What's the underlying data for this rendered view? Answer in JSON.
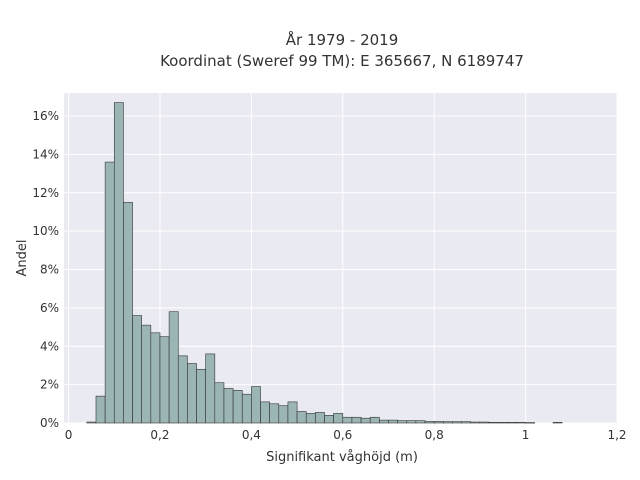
{
  "chart_data": {
    "type": "bar",
    "title_line1": "År 1979 - 2019",
    "title_line2": "Koordinat (Sweref 99 TM): E 365667, N 6189747",
    "xlabel": "Signifikant våghöjd (m)",
    "ylabel": "Andel",
    "xlim": [
      -0.01,
      1.2
    ],
    "ylim": [
      0,
      17.2
    ],
    "xticks": [
      0,
      0.2,
      0.4,
      0.6,
      0.8,
      1,
      1.2
    ],
    "xtick_labels": [
      "0",
      "0,2",
      "0,4",
      "0,6",
      "0,8",
      "1",
      "1,2"
    ],
    "yticks": [
      0,
      2,
      4,
      6,
      8,
      10,
      12,
      14,
      16
    ],
    "ytick_labels": [
      "0%",
      "2%",
      "4%",
      "6%",
      "8%",
      "10%",
      "12%",
      "14%",
      "16%"
    ],
    "grid": true,
    "bin_start": 0.04,
    "bin_width": 0.02,
    "values": [
      0.05,
      1.4,
      13.6,
      16.7,
      11.5,
      5.6,
      5.1,
      4.7,
      4.5,
      5.8,
      3.5,
      3.1,
      2.8,
      3.6,
      2.1,
      1.8,
      1.7,
      1.5,
      1.9,
      1.1,
      1.0,
      0.9,
      1.1,
      0.6,
      0.5,
      0.55,
      0.4,
      0.5,
      0.3,
      0.3,
      0.25,
      0.3,
      0.15,
      0.15,
      0.12,
      0.12,
      0.12,
      0.08,
      0.08,
      0.07,
      0.07,
      0.07,
      0.05,
      0.05,
      0.03,
      0.03,
      0.03,
      0.03,
      0.02,
      0.0,
      0.0,
      0.03
    ],
    "colors": {
      "bar": "#9bb5b5",
      "edge": "#333333",
      "plot_bg": "#eaeaf2",
      "grid": "#ffffff"
    }
  }
}
